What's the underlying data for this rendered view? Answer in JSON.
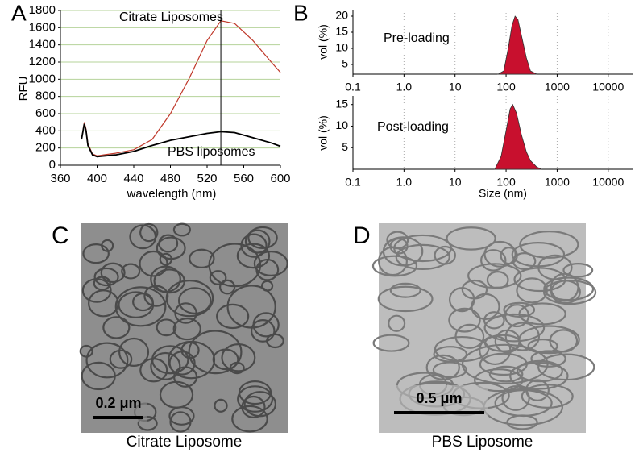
{
  "panels": [
    "A",
    "B",
    "C",
    "D"
  ],
  "chart_data": [
    {
      "type": "line",
      "xlabel": "wavelength (nm)",
      "ylabel": "RFU",
      "xlim": [
        360,
        600
      ],
      "xticks": [
        360,
        400,
        440,
        480,
        520,
        560,
        600
      ],
      "ylim": [
        0,
        1800
      ],
      "yticks": [
        0,
        200,
        400,
        600,
        800,
        1000,
        1200,
        1400,
        1600,
        1800
      ],
      "grid": true,
      "grid_color": "#b5d39a",
      "vline_x": 535,
      "annotations": [
        "Citrate Liposomes",
        "PBS liposomes"
      ],
      "x": [
        383,
        386,
        388,
        390,
        395,
        400,
        420,
        440,
        460,
        480,
        500,
        520,
        535,
        550,
        570,
        590,
        600
      ],
      "series": [
        {
          "name": "Citrate Liposomes",
          "color": "#c0392b",
          "values": [
            300,
            500,
            420,
            250,
            130,
            110,
            140,
            180,
            300,
            600,
            1000,
            1450,
            1680,
            1650,
            1450,
            1200,
            1080
          ]
        },
        {
          "name": "PBS liposomes",
          "color": "#000000",
          "values": [
            300,
            480,
            400,
            230,
            120,
            100,
            120,
            160,
            230,
            290,
            330,
            370,
            390,
            380,
            320,
            260,
            220
          ]
        }
      ]
    },
    {
      "type": "area",
      "ylabel": "vol (%)",
      "xscale": "log",
      "xlim": [
        0.1,
        30000
      ],
      "xticks": [
        0.1,
        {
          "value": 1,
          "label": "1.0"
        },
        10,
        100,
        1000,
        10000
      ],
      "ylim": [
        2,
        22
      ],
      "yticks": [
        5,
        10,
        15,
        20
      ],
      "grid": true,
      "grid_color": "#aaaaaa",
      "annotations": [
        "Pre-loading"
      ],
      "x": [
        70,
        90,
        110,
        130,
        150,
        170,
        200,
        250,
        300,
        400
      ],
      "series": [
        {
          "name": "Pre-loading",
          "color": "#c8102e",
          "values": [
            2,
            3,
            10,
            17,
            20,
            19,
            14,
            7,
            3,
            2
          ]
        }
      ]
    },
    {
      "type": "area",
      "xlabel": "Size (nm)",
      "ylabel": "vol (%)",
      "xscale": "log",
      "xlim": [
        0.1,
        30000
      ],
      "xticks": [
        0.1,
        {
          "value": 1,
          "label": "1.0"
        },
        10,
        100,
        1000,
        10000
      ],
      "ylim": [
        0,
        17
      ],
      "yticks": [
        5,
        10,
        15
      ],
      "grid": true,
      "grid_color": "#aaaaaa",
      "annotations": [
        "Post-loading"
      ],
      "x": [
        60,
        80,
        100,
        120,
        135,
        160,
        200,
        250,
        300,
        400,
        500
      ],
      "series": [
        {
          "name": "Post-loading",
          "color": "#c8102e",
          "values": [
            0,
            3,
            9,
            14,
            15,
            13,
            8,
            4,
            2,
            0.5,
            0
          ]
        }
      ]
    }
  ],
  "micrographs": [
    {
      "scale_bar": "0.2 μm",
      "caption": "Citrate Liposome"
    },
    {
      "scale_bar": "0.5 μm",
      "caption": "PBS Liposome"
    }
  ]
}
